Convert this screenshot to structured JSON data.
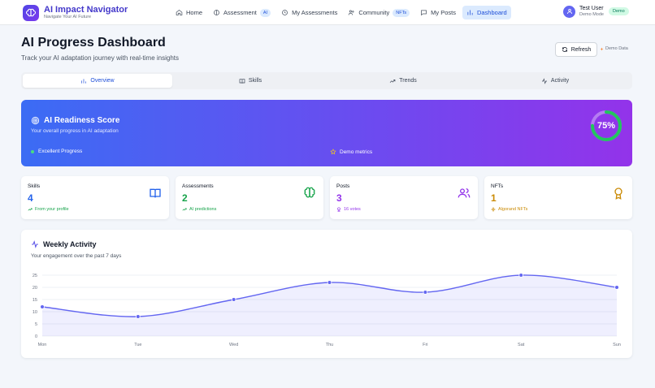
{
  "brand": {
    "title": "AI Impact Navigator",
    "subtitle": "Navigate Your AI Future"
  },
  "nav": {
    "items": [
      {
        "label": "Home",
        "icon": "home-icon"
      },
      {
        "label": "Assessment",
        "icon": "brain-icon",
        "badge": "AI"
      },
      {
        "label": "My Assessments",
        "icon": "history-icon"
      },
      {
        "label": "Community",
        "icon": "users-icon",
        "badge": "NFTs"
      },
      {
        "label": "My Posts",
        "icon": "message-icon"
      },
      {
        "label": "Dashboard",
        "icon": "chart-icon",
        "active": true
      }
    ]
  },
  "user": {
    "name": "Test User",
    "mode": "Demo Mode",
    "badge": "Demo"
  },
  "header": {
    "title": "AI Progress Dashboard",
    "subtitle": "Track your AI adaptation journey with real-time insights",
    "refresh_label": "Refresh",
    "demo_label": "Demo Data"
  },
  "tabs": [
    {
      "label": "Overview",
      "icon": "bar-chart-icon",
      "active": true
    },
    {
      "label": "Skills",
      "icon": "book-icon"
    },
    {
      "label": "Trends",
      "icon": "trend-icon"
    },
    {
      "label": "Activity",
      "icon": "activity-icon"
    }
  ],
  "readiness": {
    "title": "AI Readiness Score",
    "subtitle": "Your overall progress in AI adaptation",
    "tag1": "Excellent Progress",
    "tag2": "Demo metrics",
    "score_label": "75%",
    "score": 0.75
  },
  "stats": [
    {
      "label": "Skills",
      "value": "4",
      "foot": "From your profile",
      "color": "#2563eb",
      "icon": "book-open-icon"
    },
    {
      "label": "Assessments",
      "value": "2",
      "foot": "AI predictions",
      "color": "#16a34a",
      "icon": "brain-icon"
    },
    {
      "label": "Posts",
      "value": "3",
      "foot": "16 votes",
      "color": "#9333ea",
      "icon": "users-icon"
    },
    {
      "label": "NFTs",
      "value": "1",
      "foot": "Algorand NFTs",
      "color": "#ca8a04",
      "icon": "award-icon"
    }
  ],
  "activity": {
    "title": "Weekly Activity",
    "subtitle": "Your engagement over the past 7 days"
  },
  "chart_data": {
    "type": "area",
    "categories": [
      "Mon",
      "Tue",
      "Wed",
      "Thu",
      "Fri",
      "Sat",
      "Sun"
    ],
    "values": [
      12,
      8,
      15,
      22,
      18,
      25,
      20
    ],
    "ylim": [
      0,
      25
    ],
    "yticks": [
      0,
      5,
      10,
      15,
      20,
      25
    ],
    "grid": true,
    "color": "#6366f1"
  }
}
